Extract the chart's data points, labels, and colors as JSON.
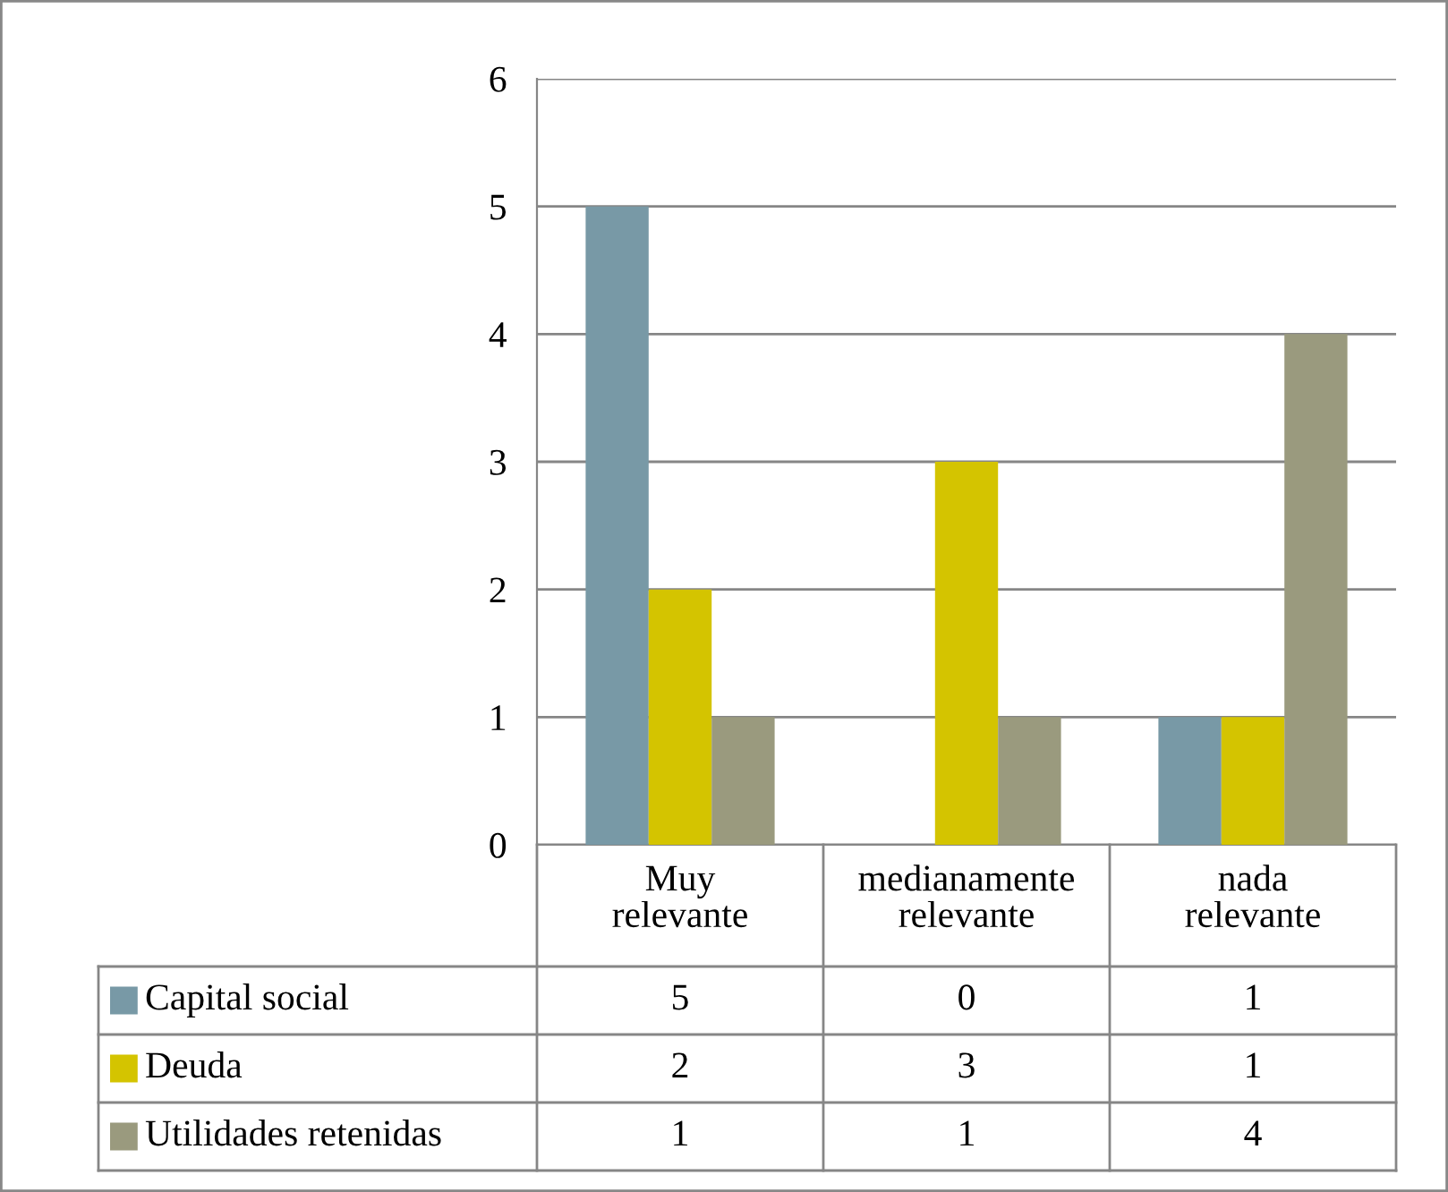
{
  "chart_data": {
    "type": "bar",
    "categories": [
      "Muy relevante",
      "medianamente relevante",
      "nada relevante"
    ],
    "series": [
      {
        "name": "Capital social",
        "color": "#7899a6",
        "values": [
          5,
          0,
          1
        ]
      },
      {
        "name": "Deuda",
        "color": "#d4c400",
        "values": [
          2,
          3,
          1
        ]
      },
      {
        "name": "Utilidades retenidas",
        "color": "#9a9a7e",
        "values": [
          1,
          1,
          4
        ]
      }
    ],
    "ylim": [
      0,
      6
    ],
    "yticks": [
      0,
      1,
      2,
      3,
      4,
      5,
      6
    ],
    "grid": "y",
    "legend": "bottom",
    "data_labels": true
  }
}
